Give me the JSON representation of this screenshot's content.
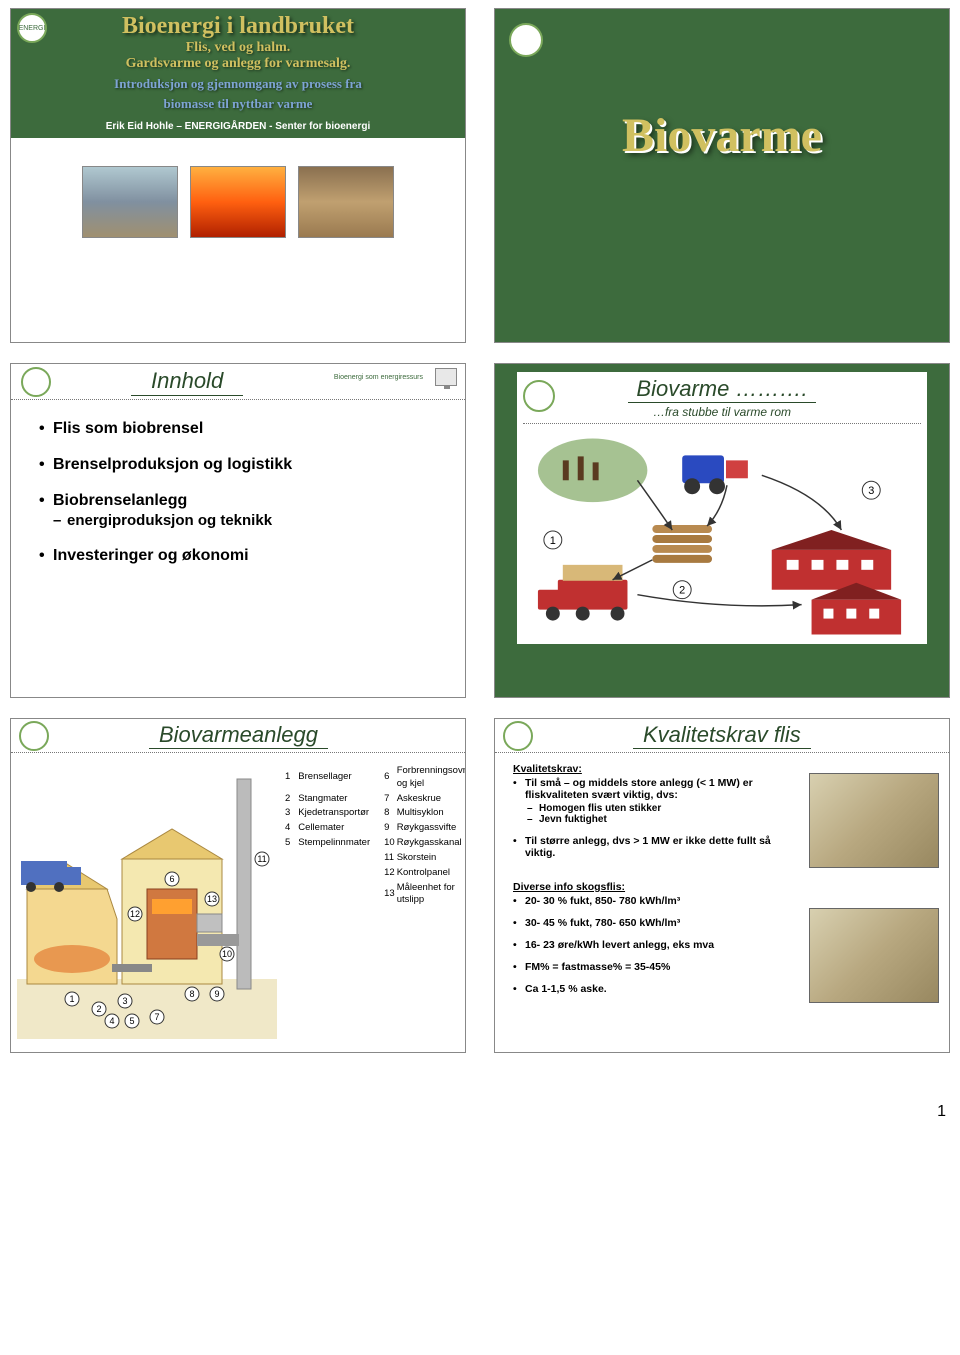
{
  "slide1": {
    "title": "Bioenergi i landbruket",
    "sub1a": "Flis, ved og halm.",
    "sub1b": "Gardsvarme og anlegg for varmesalg.",
    "sub2a": "Introduksjon og gjennomgang av prosess fra",
    "sub2b": "biomasse til nyttbar varme",
    "author": "Erik Eid Hohle – ENERGIGÅRDEN - Senter for bioenergi"
  },
  "slide2": {
    "title": "Biovarme"
  },
  "slide3": {
    "heading": "Innhold",
    "subhead": "Bioenergi som energiressurs",
    "items": {
      "a": "Flis som biobrensel",
      "b": "Brenselproduksjon og logistikk",
      "c": "Biobrenselanlegg",
      "c1": "energiproduksjon og teknikk",
      "d": "Investeringer og økonomi"
    }
  },
  "slide4": {
    "title": "Biovarme ……….",
    "sub": "…fra stubbe til varme rom",
    "nums": {
      "n1": "1",
      "n2": "2",
      "n3": "3"
    }
  },
  "slide5": {
    "heading": "Biovarmeanlegg",
    "legend": [
      [
        "1",
        "Brensellager"
      ],
      [
        "2",
        "Stangmater"
      ],
      [
        "3",
        "Kjedetransportør"
      ],
      [
        "4",
        "Cellemater"
      ],
      [
        "5",
        "Stempelinnmater"
      ],
      [
        "6",
        "Forbrenningsovn og kjel"
      ],
      [
        "7",
        "Askeskrue"
      ],
      [
        "8",
        "Multisyklon"
      ],
      [
        "9",
        "Røykgassvifte"
      ],
      [
        "10",
        "Røykgasskanal"
      ],
      [
        "11",
        "Skorstein"
      ],
      [
        "12",
        "Kontrolpanel"
      ],
      [
        "13",
        "Måleenhet for utslipp"
      ]
    ]
  },
  "slide6": {
    "heading": "Kvalitetskrav flis",
    "grp1_title": "Kvalitetskrav:",
    "b1": "Til små – og middels store anlegg (< 1 MW) er fliskvaliteten svært viktig, dvs:",
    "b1a": "Homogen flis uten stikker",
    "b1b": "Jevn fuktighet",
    "b2": "Til større anlegg, dvs > 1 MW er ikke dette fullt så viktig.",
    "grp2_title": "Diverse info skogsflis:",
    "d1": "20- 30 % fukt, 850- 780 kWh/lm³",
    "d2": "30- 45 % fukt, 780- 650 kWh/lm³",
    "d3": "16- 23 øre/kWh levert anlegg, eks mva",
    "d4": "FM% = fastmasse% = 35-45%",
    "d5": "Ca 1-1,5 % aske."
  },
  "page_number": "1",
  "colors": {
    "green": "#3d6b3d",
    "gold": "#d0c060",
    "blue": "#7ea4d4",
    "darkgreen_text": "#2a4a2a"
  }
}
